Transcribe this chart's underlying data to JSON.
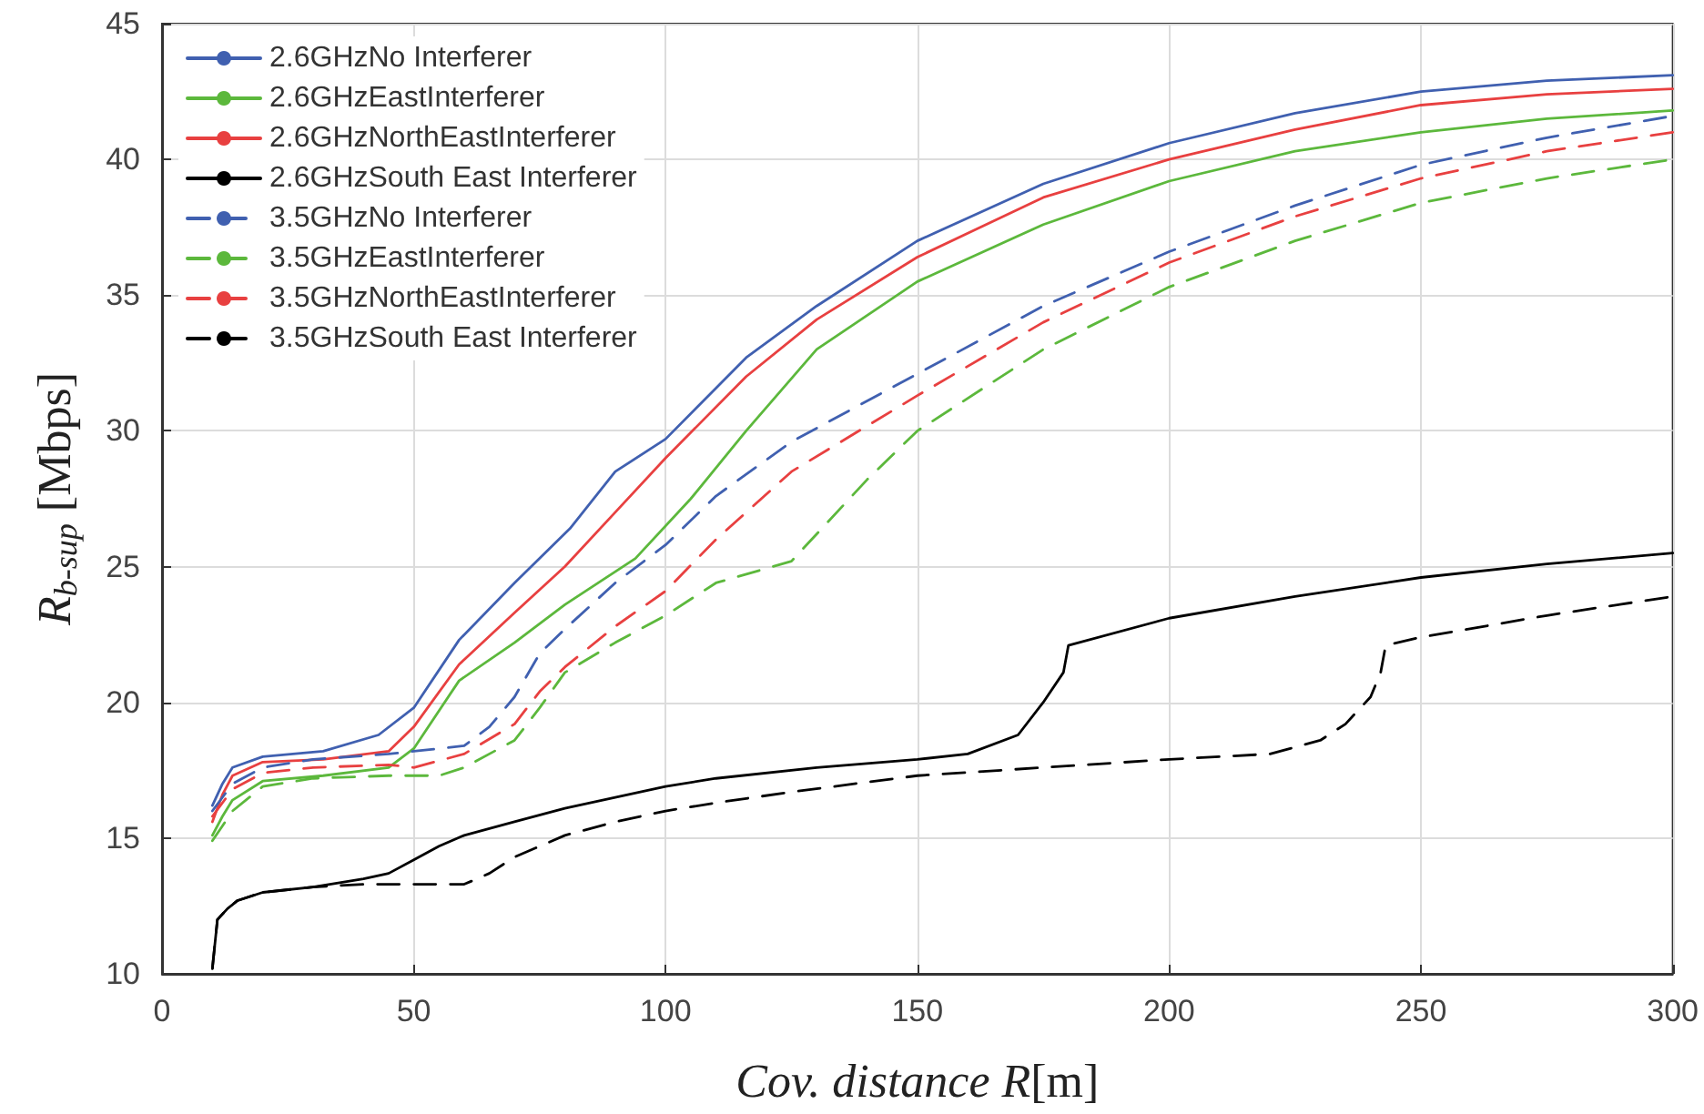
{
  "chart_data": {
    "type": "line",
    "xlabel": "Cov. distance R[m]",
    "ylabel": "R$_{b-sup}$ [Mbps]",
    "xlim": [
      0,
      300
    ],
    "xticks": [
      0,
      50,
      100,
      150,
      200,
      250,
      300
    ],
    "ylim": [
      10,
      45
    ],
    "yticks": [
      10,
      15,
      20,
      25,
      30,
      35,
      40,
      45
    ],
    "grid": true,
    "legend": "top left",
    "marker": "none",
    "series": [
      {
        "name": "2.6GHzNo Interferer",
        "color": "#4060b0",
        "line_style": "solid",
        "x": [
          10,
          12,
          14,
          20,
          32,
          43,
          50,
          59,
          70,
          81,
          90,
          100,
          116,
          130,
          150,
          175,
          200,
          225,
          250,
          275,
          300
        ],
        "values": [
          16.2,
          17.0,
          17.6,
          18.0,
          18.2,
          18.8,
          19.8,
          22.3,
          24.4,
          26.4,
          28.5,
          29.7,
          32.7,
          34.6,
          37.0,
          39.1,
          40.6,
          41.7,
          42.5,
          42.9,
          43.1
        ]
      },
      {
        "name": "2.6GHzEastInterferer",
        "color": "#5cb83c",
        "line_style": "solid",
        "x": [
          10,
          12,
          14,
          20,
          32,
          45,
          50,
          59,
          70,
          80,
          94,
          105,
          116,
          130,
          150,
          175,
          200,
          225,
          250,
          275,
          300
        ],
        "values": [
          15.1,
          15.8,
          16.4,
          17.1,
          17.3,
          17.6,
          18.3,
          20.8,
          22.2,
          23.6,
          25.3,
          27.5,
          30.0,
          33.0,
          35.5,
          37.6,
          39.2,
          40.3,
          41.0,
          41.5,
          41.8
        ]
      },
      {
        "name": "2.6GHzNorthEastInterferer",
        "color": "#e84040",
        "line_style": "solid",
        "x": [
          10,
          12,
          14,
          20,
          32,
          45,
          50,
          59,
          70,
          80,
          90,
          100,
          116,
          130,
          150,
          175,
          200,
          225,
          250,
          275,
          300
        ],
        "values": [
          15.6,
          16.6,
          17.3,
          17.8,
          17.9,
          18.2,
          19.1,
          21.4,
          23.3,
          25.0,
          27.0,
          29.0,
          32.0,
          34.1,
          36.4,
          38.6,
          40.0,
          41.1,
          42.0,
          42.4,
          42.6
        ]
      },
      {
        "name": "2.6GHzSouth East Interferer",
        "color": "#000000",
        "line_style": "solid",
        "x": [
          10,
          11,
          13,
          15,
          20,
          30,
          40,
          45,
          50,
          55,
          60,
          70,
          80,
          90,
          100,
          110,
          130,
          150,
          160,
          170,
          175,
          179,
          180,
          200,
          225,
          250,
          275,
          300
        ],
        "values": [
          10.2,
          12.0,
          12.4,
          12.7,
          13.0,
          13.2,
          13.5,
          13.7,
          14.2,
          14.7,
          15.1,
          15.6,
          16.1,
          16.5,
          16.9,
          17.2,
          17.6,
          17.9,
          18.1,
          18.8,
          20.0,
          21.1,
          22.1,
          23.1,
          23.9,
          24.6,
          25.1,
          25.5
        ]
      },
      {
        "name": "3.5GHzNo Interferer",
        "color": "#4060b0",
        "line_style": "dashed",
        "x": [
          10,
          14,
          20,
          30,
          45,
          50,
          60,
          65,
          70,
          75,
          80,
          90,
          100,
          110,
          125,
          150,
          175,
          200,
          225,
          250,
          275,
          300
        ],
        "values": [
          16.0,
          17.0,
          17.6,
          17.9,
          18.1,
          18.2,
          18.4,
          19.1,
          20.2,
          21.8,
          22.7,
          24.4,
          25.8,
          27.6,
          29.6,
          32.1,
          34.6,
          36.6,
          38.3,
          39.8,
          40.8,
          41.6
        ]
      },
      {
        "name": "3.5GHzEastInterferer",
        "color": "#5cb83c",
        "line_style": "dashed",
        "x": [
          10,
          14,
          20,
          30,
          45,
          55,
          60,
          70,
          75,
          80,
          90,
          100,
          110,
          125,
          140,
          150,
          175,
          200,
          225,
          250,
          275,
          300
        ],
        "values": [
          14.9,
          16.0,
          16.9,
          17.2,
          17.3,
          17.3,
          17.6,
          18.6,
          19.8,
          21.1,
          22.2,
          23.2,
          24.4,
          25.2,
          28.2,
          30.0,
          33.0,
          35.3,
          37.0,
          38.4,
          39.3,
          40.0
        ]
      },
      {
        "name": "3.5GHzNorthEastInterferer",
        "color": "#e84040",
        "line_style": "dashed",
        "x": [
          10,
          14,
          20,
          30,
          45,
          50,
          60,
          70,
          75,
          80,
          90,
          100,
          110,
          125,
          150,
          175,
          200,
          225,
          250,
          275,
          300
        ],
        "values": [
          15.8,
          16.8,
          17.4,
          17.6,
          17.7,
          17.6,
          18.1,
          19.2,
          20.4,
          21.3,
          22.8,
          24.1,
          26.0,
          28.5,
          31.3,
          34.0,
          36.2,
          37.9,
          39.3,
          40.3,
          41.0
        ]
      },
      {
        "name": "3.5GHzSouth East Interferer",
        "color": "#000000",
        "line_style": "dashed",
        "x": [
          10,
          11,
          13,
          15,
          20,
          30,
          40,
          50,
          60,
          65,
          70,
          80,
          90,
          100,
          110,
          125,
          150,
          175,
          200,
          220,
          230,
          235,
          240,
          242,
          243,
          250,
          275,
          300
        ],
        "values": [
          10.2,
          12.0,
          12.4,
          12.7,
          13.0,
          13.2,
          13.3,
          13.3,
          13.3,
          13.7,
          14.3,
          15.1,
          15.6,
          16.0,
          16.3,
          16.7,
          17.3,
          17.6,
          17.9,
          18.1,
          18.6,
          19.2,
          20.2,
          21.1,
          22.1,
          22.4,
          23.2,
          23.9
        ]
      }
    ]
  }
}
